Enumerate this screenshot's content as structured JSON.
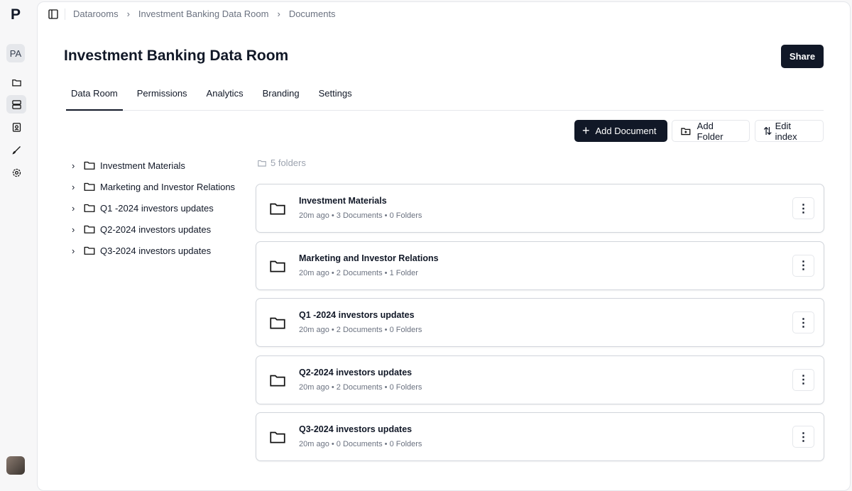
{
  "app": {
    "logo": "P",
    "avatar": "PA"
  },
  "breadcrumb": [
    "Datarooms",
    "Investment Banking Data Room",
    "Documents"
  ],
  "title": "Investment Banking Data Room",
  "share_label": "Share",
  "tabs": [
    "Data Room",
    "Permissions",
    "Analytics",
    "Branding",
    "Settings"
  ],
  "actions": {
    "add_document": "Add Document",
    "add_folder": "Add Folder",
    "edit_index": "Edit index"
  },
  "tree": [
    "Investment Materials",
    "Marketing and Investor Relations",
    "Q1 -2024 investors updates",
    "Q2-2024 investors updates",
    "Q3-2024 investors updates"
  ],
  "folder_count": "5 folders",
  "folders": [
    {
      "name": "Investment Materials",
      "time": "20m ago",
      "docs": "3 Documents",
      "folders": "0 Folders"
    },
    {
      "name": "Marketing and Investor Relations",
      "time": "20m ago",
      "docs": "2 Documents",
      "folders": "1 Folder"
    },
    {
      "name": "Q1 -2024 investors updates",
      "time": "20m ago",
      "docs": "2 Documents",
      "folders": "0 Folders"
    },
    {
      "name": "Q2-2024 investors updates",
      "time": "20m ago",
      "docs": "2 Documents",
      "folders": "0 Folders"
    },
    {
      "name": "Q3-2024 investors updates",
      "time": "20m ago",
      "docs": "0 Documents",
      "folders": "0 Folders"
    }
  ]
}
